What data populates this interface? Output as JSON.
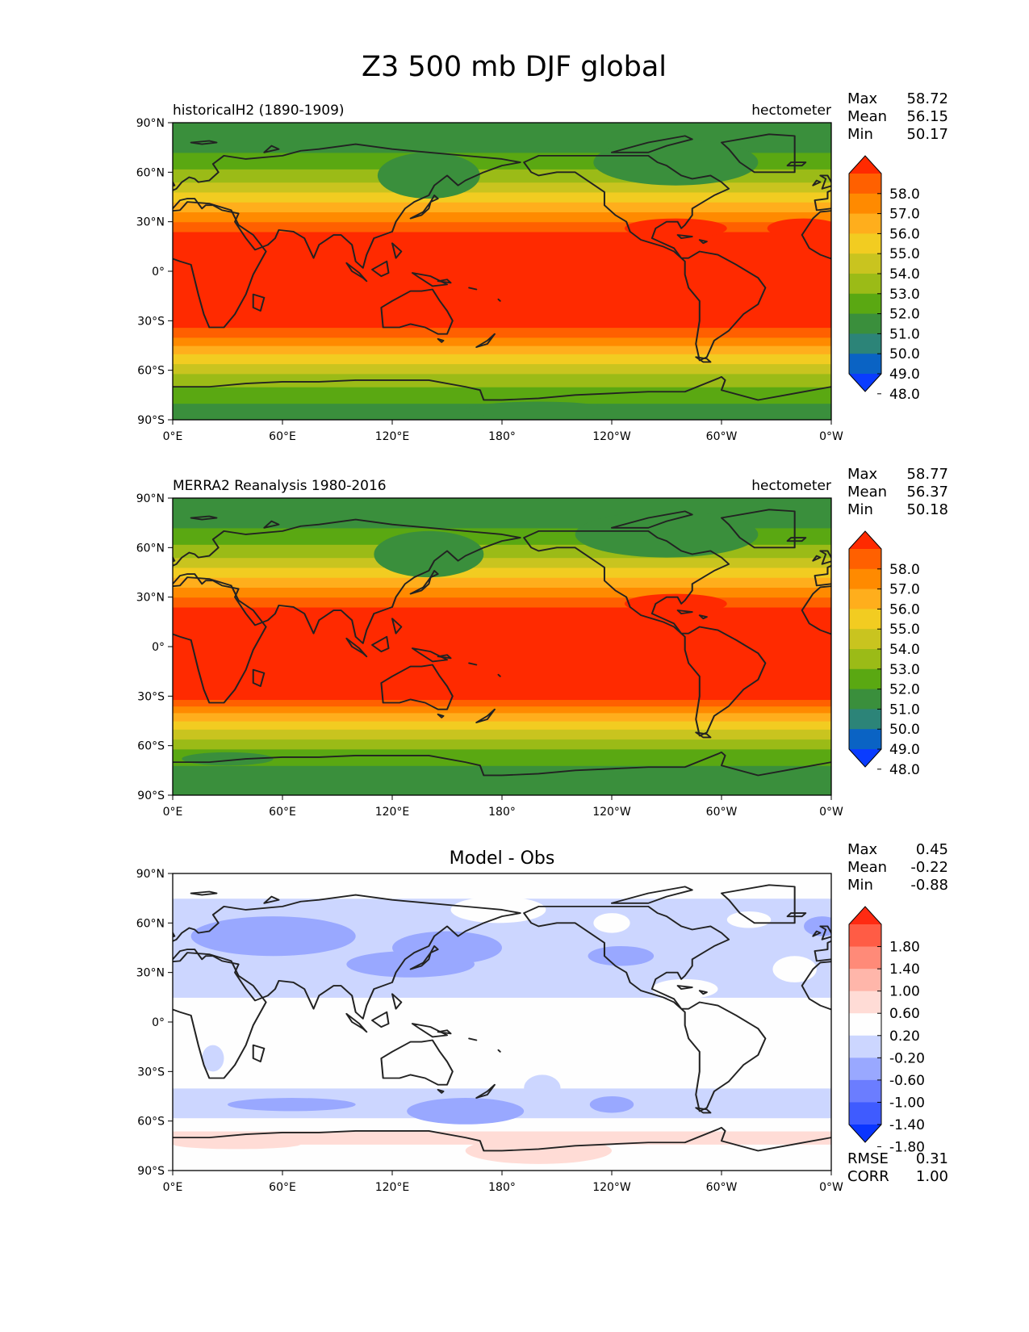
{
  "figure": {
    "title": "Z3 500 mb DJF global"
  },
  "axes": {
    "lat_labels": [
      "90°N",
      "60°N",
      "30°N",
      "0°",
      "30°S",
      "60°S",
      "90°S"
    ],
    "lon_labels": [
      "0°E",
      "60°E",
      "120°E",
      "180°",
      "120°W",
      "60°W",
      "0°W"
    ]
  },
  "panels": [
    {
      "id": "model",
      "left_title": "historicalH2 (1890-1909)",
      "center_title": "",
      "units": "hectometer",
      "stats": {
        "labels": [
          "Max",
          "Mean",
          "Min"
        ],
        "values": [
          "58.72",
          "56.15",
          "50.17"
        ]
      },
      "colorbar": {
        "labels": [
          "58.0",
          "57.0",
          "56.0",
          "55.0",
          "54.0",
          "53.0",
          "52.0",
          "51.0",
          "50.0",
          "49.0",
          "48.0"
        ],
        "colors": [
          "#ff2a00",
          "#ff6000",
          "#ff8a00",
          "#ffae1c",
          "#f2cc21",
          "#c9c41f",
          "#9bbb17",
          "#5aa812",
          "#3a8f3c",
          "#2c8478",
          "#0a63c4",
          "#0a3cff"
        ]
      },
      "field": {
        "bands": [
          {
            "lat": [
              -90,
              -80
            ],
            "value": 50.4
          },
          {
            "lat": [
              -80,
              -70
            ],
            "value": 51.4
          },
          {
            "lat": [
              -70,
              -62
            ],
            "value": 52.4
          },
          {
            "lat": [
              -62,
              -56
            ],
            "value": 53.4
          },
          {
            "lat": [
              -56,
              -50
            ],
            "value": 54.4
          },
          {
            "lat": [
              -50,
              -45
            ],
            "value": 55.4
          },
          {
            "lat": [
              -45,
              -40
            ],
            "value": 56.4
          },
          {
            "lat": [
              -40,
              -34
            ],
            "value": 57.4
          },
          {
            "lat": [
              -34,
              24
            ],
            "value": 58.4
          },
          {
            "lat": [
              24,
              30
            ],
            "value": 57.4
          },
          {
            "lat": [
              30,
              36
            ],
            "value": 56.4
          },
          {
            "lat": [
              36,
              42
            ],
            "value": 55.4
          },
          {
            "lat": [
              42,
              48
            ],
            "value": 54.4
          },
          {
            "lat": [
              48,
              54
            ],
            "value": 53.4
          },
          {
            "lat": [
              54,
              62
            ],
            "value": 52.4
          },
          {
            "lat": [
              62,
              72
            ],
            "value": 51.4
          },
          {
            "lat": [
              72,
              90
            ],
            "value": 50.6
          }
        ],
        "blobs": [
          {
            "lon": 140,
            "lat": 58,
            "rx": 28,
            "ry": 14,
            "value": 50.6
          },
          {
            "lon": 275,
            "lat": 66,
            "rx": 45,
            "ry": 14,
            "value": 50.6
          },
          {
            "lon": 275,
            "lat": 26,
            "rx": 28,
            "ry": 6,
            "value": 58.4
          },
          {
            "lon": 345,
            "lat": 26,
            "rx": 20,
            "ry": 6,
            "value": 58.4
          },
          {
            "lon": 200,
            "lat": -84,
            "rx": 40,
            "ry": 5,
            "value": 50.2
          }
        ]
      }
    },
    {
      "id": "obs",
      "left_title": "MERRA2 Reanalysis 1980-2016",
      "center_title": "",
      "units": "hectometer",
      "stats": {
        "labels": [
          "Max",
          "Mean",
          "Min"
        ],
        "values": [
          "58.77",
          "56.37",
          "50.18"
        ]
      },
      "colorbar": {
        "labels": [
          "58.0",
          "57.0",
          "56.0",
          "55.0",
          "54.0",
          "53.0",
          "52.0",
          "51.0",
          "50.0",
          "49.0",
          "48.0"
        ],
        "colors": [
          "#ff2a00",
          "#ff6000",
          "#ff8a00",
          "#ffae1c",
          "#f2cc21",
          "#c9c41f",
          "#9bbb17",
          "#5aa812",
          "#3a8f3c",
          "#2c8478",
          "#0a63c4",
          "#0a3cff"
        ]
      },
      "field": {
        "bands": [
          {
            "lat": [
              -90,
              -72
            ],
            "value": 50.6
          },
          {
            "lat": [
              -72,
              -62
            ],
            "value": 51.4
          },
          {
            "lat": [
              -62,
              -56
            ],
            "value": 52.4
          },
          {
            "lat": [
              -56,
              -50
            ],
            "value": 53.4
          },
          {
            "lat": [
              -50,
              -45
            ],
            "value": 54.4
          },
          {
            "lat": [
              -45,
              -40
            ],
            "value": 55.4
          },
          {
            "lat": [
              -40,
              -36
            ],
            "value": 56.4
          },
          {
            "lat": [
              -36,
              -32
            ],
            "value": 57.4
          },
          {
            "lat": [
              -32,
              24
            ],
            "value": 58.4
          },
          {
            "lat": [
              24,
              30
            ],
            "value": 57.4
          },
          {
            "lat": [
              30,
              36
            ],
            "value": 56.4
          },
          {
            "lat": [
              36,
              42
            ],
            "value": 55.4
          },
          {
            "lat": [
              42,
              48
            ],
            "value": 54.4
          },
          {
            "lat": [
              48,
              54
            ],
            "value": 53.4
          },
          {
            "lat": [
              54,
              62
            ],
            "value": 52.4
          },
          {
            "lat": [
              62,
              72
            ],
            "value": 51.4
          },
          {
            "lat": [
              72,
              90
            ],
            "value": 50.6
          }
        ],
        "blobs": [
          {
            "lon": 140,
            "lat": 56,
            "rx": 30,
            "ry": 14,
            "value": 50.6
          },
          {
            "lon": 270,
            "lat": 68,
            "rx": 50,
            "ry": 14,
            "value": 50.6
          },
          {
            "lon": 275,
            "lat": 26,
            "rx": 28,
            "ry": 6,
            "value": 58.4
          },
          {
            "lon": 30,
            "lat": -68,
            "rx": 25,
            "ry": 4,
            "value": 50.6
          }
        ]
      }
    },
    {
      "id": "diff",
      "left_title": "",
      "center_title": "Model - Obs",
      "units": "",
      "stats": {
        "labels": [
          "Max",
          "Mean",
          "Min"
        ],
        "values": [
          "0.45",
          "-0.22",
          "-0.88"
        ]
      },
      "colorbar": {
        "labels": [
          "1.80",
          "1.40",
          "1.00",
          "0.60",
          "0.20",
          "-0.20",
          "-0.60",
          "-1.00",
          "-1.40",
          "-1.80"
        ],
        "colors": [
          "#ff2a12",
          "#ff5c45",
          "#ff8a78",
          "#ffb6aa",
          "#ffdcd6",
          "#fefefe",
          "#ccd6ff",
          "#99a8ff",
          "#6b7dff",
          "#3f5bff",
          "#0a35ff"
        ]
      },
      "metrics": {
        "labels": [
          "RMSE",
          "CORR"
        ],
        "values": [
          "0.31",
          "1.00"
        ]
      },
      "field": {
        "bands": [
          {
            "lat": [
              -90,
              -74
            ],
            "value": 0.0
          },
          {
            "lat": [
              -74,
              -66
            ],
            "value": 0.3
          },
          {
            "lat": [
              -66,
              -58
            ],
            "value": 0.0
          },
          {
            "lat": [
              -58,
              -40
            ],
            "value": -0.35
          },
          {
            "lat": [
              -40,
              15
            ],
            "value": 0.0
          },
          {
            "lat": [
              15,
              75
            ],
            "value": -0.35
          },
          {
            "lat": [
              75,
              90
            ],
            "value": 0.0
          }
        ],
        "blobs": [
          {
            "lon": 55,
            "lat": 52,
            "rx": 45,
            "ry": 12,
            "value": -0.75
          },
          {
            "lon": 130,
            "lat": 35,
            "rx": 35,
            "ry": 8,
            "value": -0.75
          },
          {
            "lon": 150,
            "lat": 45,
            "rx": 30,
            "ry": 10,
            "value": -0.75
          },
          {
            "lon": 245,
            "lat": 40,
            "rx": 18,
            "ry": 6,
            "value": -0.75
          },
          {
            "lon": 355,
            "lat": 58,
            "rx": 10,
            "ry": 6,
            "value": -0.75
          },
          {
            "lon": 65,
            "lat": -50,
            "rx": 35,
            "ry": 4,
            "value": -0.75
          },
          {
            "lon": 160,
            "lat": -54,
            "rx": 32,
            "ry": 8,
            "value": -0.75
          },
          {
            "lon": 240,
            "lat": -50,
            "rx": 12,
            "ry": 5,
            "value": -0.75
          },
          {
            "lon": 178,
            "lat": 68,
            "rx": 26,
            "ry": 8,
            "value": 0.0
          },
          {
            "lon": 240,
            "lat": 60,
            "rx": 10,
            "ry": 6,
            "value": 0.0
          },
          {
            "lon": 315,
            "lat": 62,
            "rx": 12,
            "ry": 5,
            "value": 0.0
          },
          {
            "lon": 340,
            "lat": 32,
            "rx": 12,
            "ry": 8,
            "value": 0.0
          },
          {
            "lon": 280,
            "lat": 20,
            "rx": 18,
            "ry": 6,
            "value": 0.0
          },
          {
            "lon": 22,
            "lat": -22,
            "rx": 6,
            "ry": 8,
            "value": -0.35
          },
          {
            "lon": 202,
            "lat": -40,
            "rx": 10,
            "ry": 8,
            "value": -0.35
          },
          {
            "lon": 200,
            "lat": -78,
            "rx": 40,
            "ry": 8,
            "value": 0.3
          },
          {
            "lon": 35,
            "lat": -74,
            "rx": 35,
            "ry": 3,
            "value": 0.3
          }
        ]
      }
    }
  ]
}
